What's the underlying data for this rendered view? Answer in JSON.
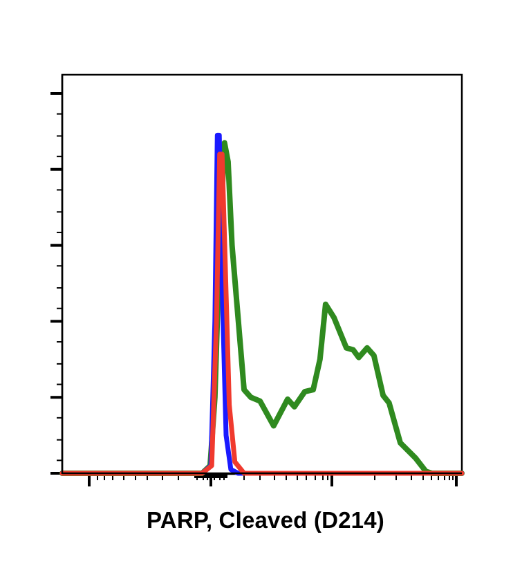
{
  "chart_data": {
    "type": "line",
    "subtype": "flow-cytometry-histogram",
    "title": "",
    "xlabel": "PARP, Cleaved (D214)",
    "ylabel": "",
    "x_scale": "biexponential (log-like)",
    "x_tick_labels": [],
    "y_tick_labels": [],
    "grid": false,
    "legend": null,
    "ylim": [
      0,
      100
    ],
    "xlim": [
      0,
      100
    ],
    "notes": "Axis tick marks shown without numeric labels. Values expressed in relative units (x: 0-100 across plot width, y: % of max major tick).",
    "series": [
      {
        "name": "blue",
        "color": "#1a1aff",
        "x": [
          0,
          35,
          37.2,
          38.2,
          38.8,
          39.3,
          40.0,
          41.0,
          42.2,
          44,
          100
        ],
        "y": [
          0,
          0,
          2,
          40,
          89,
          89,
          50,
          10,
          1,
          0,
          0
        ]
      },
      {
        "name": "red",
        "color": "#f03a2e",
        "x": [
          0,
          35,
          37.4,
          38.6,
          39.4,
          40.0,
          40.8,
          41.8,
          43.2,
          45.5,
          100
        ],
        "y": [
          0,
          0,
          2,
          40,
          84,
          84,
          55,
          18,
          3,
          0,
          0
        ]
      },
      {
        "name": "green",
        "color": "#2f8a1f",
        "x": [
          0,
          35,
          37,
          38.2,
          39.4,
          40.6,
          41.5,
          42.5,
          45.5,
          47.2,
          49.5,
          52.9,
          56.4,
          58.1,
          60.7,
          62.8,
          64.5,
          65.9,
          68.0,
          71.1,
          72.8,
          74.2,
          76.3,
          78.0,
          80.3,
          81.8,
          84.6,
          88.4,
          91.0,
          92.5,
          100
        ],
        "y": [
          0,
          0,
          2,
          20,
          60,
          87,
          82,
          60,
          22,
          20,
          19,
          12.5,
          19.5,
          17.5,
          21.5,
          22,
          30,
          44.5,
          41,
          33,
          32.5,
          30.5,
          33,
          31,
          20.5,
          18.5,
          8,
          4,
          0.5,
          0,
          0
        ]
      }
    ]
  }
}
